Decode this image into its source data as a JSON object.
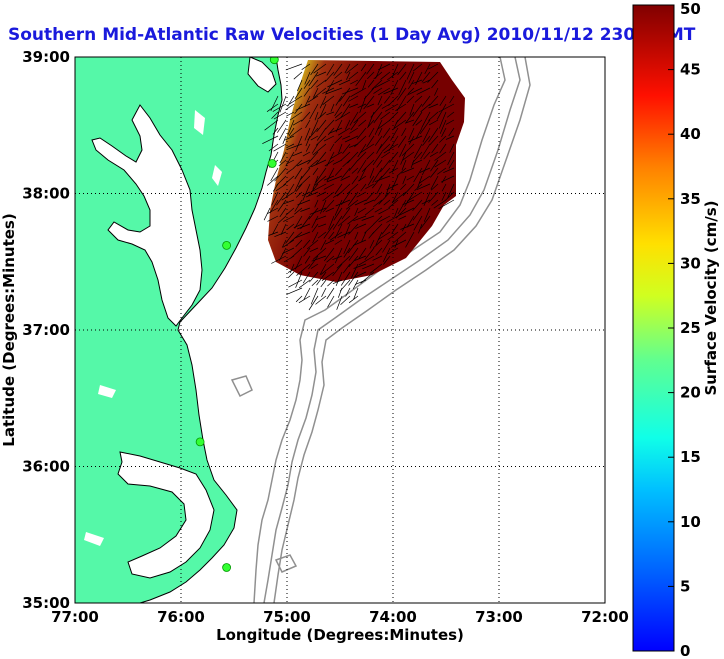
{
  "figure": {
    "title": "Southern Mid-Atlantic Raw Velocities (1 Day Avg) 2010/11/12 2300 GMT",
    "title_color": "#1a1adc",
    "x_axis_label": "Longitude (Degrees:Minutes)",
    "y_axis_label": "Latitude (Degrees:Minutes)",
    "x_ticks": [
      "77:00",
      "76:00",
      "75:00",
      "74:00",
      "73:00",
      "72:00"
    ],
    "y_ticks": [
      "39:00",
      "38:00",
      "37:00",
      "36:00",
      "35:00"
    ],
    "colorbar_label": "Surface Velocity (cm/s)",
    "colorbar_ticks": [
      "50",
      "45",
      "40",
      "35",
      "30",
      "25",
      "20",
      "15",
      "10",
      "5",
      "0"
    ]
  },
  "colors": {
    "land": "#55f8a8",
    "water_inland": "#ffffff",
    "coastline": "#000000",
    "bathymetry": "#909090",
    "site_marker": "#33ff33",
    "max_velocity": "#7a0000",
    "vector_arrows": "#000000"
  },
  "map": {
    "lon_range": [
      -77,
      -72
    ],
    "lat_range": [
      35,
      39
    ],
    "grid": "dotted",
    "colorbar_range_cm_s": [
      0,
      50
    ],
    "colormap": "jet",
    "site_markers": [
      {
        "lon": -75.12,
        "lat": 38.98
      },
      {
        "lon": -75.14,
        "lat": 38.22
      },
      {
        "lon": -75.57,
        "lat": 37.62
      },
      {
        "lon": -75.82,
        "lat": 36.18
      },
      {
        "lon": -75.57,
        "lat": 35.26
      }
    ],
    "velocity_field_region": "offshore Delaware Bay to Chesapeake mouth, 38.8N-37.2N, 75.2W-73.4W"
  }
}
